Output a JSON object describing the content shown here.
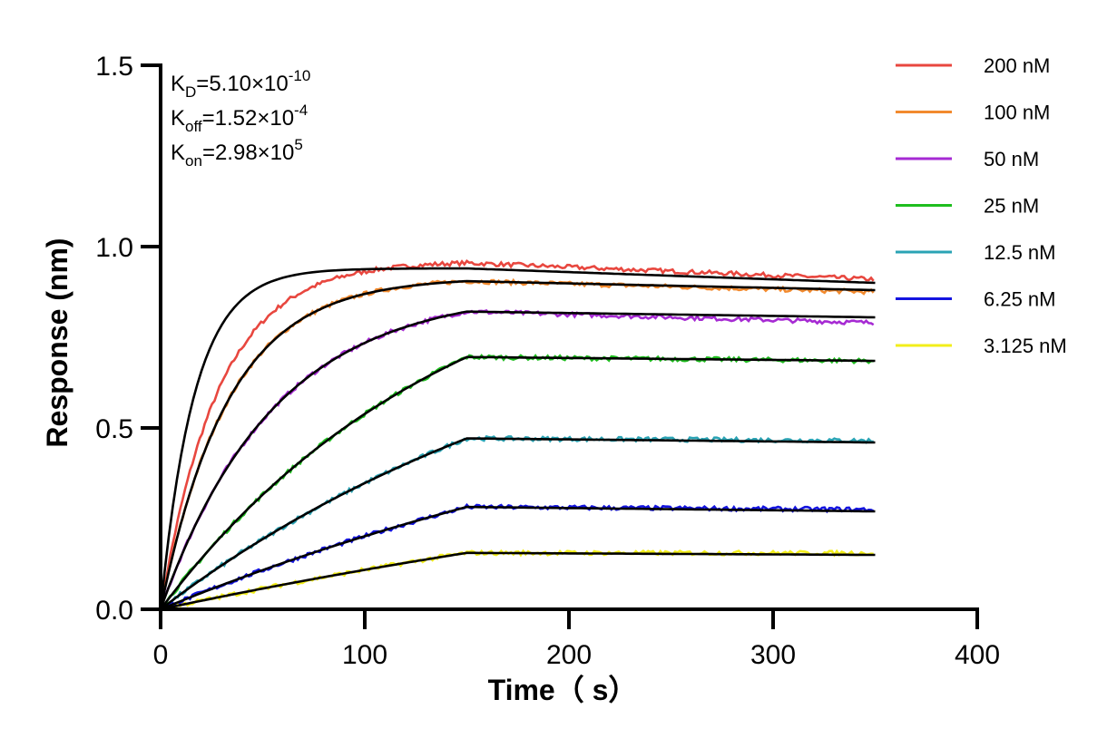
{
  "chart_data": {
    "type": "line",
    "xlabel": "Time（ s）",
    "ylabel": "Response (nm)",
    "xlim": [
      0,
      400
    ],
    "ylim": [
      0.0,
      1.5
    ],
    "x_ticks": [
      "0",
      "100",
      "200",
      "300",
      "400"
    ],
    "y_ticks": [
      "0.0",
      "0.5",
      "1.0",
      "1.5"
    ],
    "x_tick_values": [
      0,
      100,
      200,
      300,
      400
    ],
    "y_tick_values": [
      0.0,
      0.5,
      1.0,
      1.5
    ],
    "grid": false,
    "legend_position": "top-right",
    "association_end": 150,
    "experiment_end": 350,
    "kinetics": [
      {
        "name": "K",
        "sub": "D",
        "eq": "=5.10×10",
        "exp": "-10"
      },
      {
        "name": "K",
        "sub": "off",
        "eq": "=1.52×10",
        "exp": "-4"
      },
      {
        "name": "K",
        "sub": "on",
        "eq": "=2.98×10",
        "exp": "5"
      }
    ],
    "series": [
      {
        "name": "200 nM",
        "color": "#e8473f",
        "fit_rmax": 0.94,
        "fit_kobs": 0.06,
        "data_rmax": 0.96,
        "data_kobs": 0.035,
        "end_value": 0.91,
        "fit_end_value": 0.9
      },
      {
        "name": "100 nM",
        "color": "#f28a2e",
        "fit_rmax": 0.915,
        "fit_kobs": 0.03,
        "data_rmax": 0.915,
        "data_kobs": 0.03,
        "end_value": 0.875,
        "fit_end_value": 0.88
      },
      {
        "name": "50 nM",
        "color": "#a62ad3",
        "fit_rmax": 0.88,
        "fit_kobs": 0.018,
        "data_rmax": 0.88,
        "data_kobs": 0.018,
        "end_value": 0.79,
        "fit_end_value": 0.805
      },
      {
        "name": "25 nM",
        "color": "#1fbe1f",
        "fit_rmax": 1.07,
        "fit_kobs": 0.007,
        "data_rmax": 1.07,
        "data_kobs": 0.007,
        "end_value": 0.685,
        "fit_end_value": 0.685
      },
      {
        "name": "12.5 nM",
        "color": "#2aa3b4",
        "fit_rmax": 0.96,
        "fit_kobs": 0.0045,
        "data_rmax": 0.96,
        "data_kobs": 0.0045,
        "end_value": 0.465,
        "fit_end_value": 0.46
      },
      {
        "name": "6.25 nM",
        "color": "#1414e0",
        "fit_rmax": 0.8,
        "fit_kobs": 0.0029,
        "data_rmax": 0.8,
        "data_kobs": 0.0029,
        "end_value": 0.275,
        "fit_end_value": 0.27
      },
      {
        "name": "3.125 nM",
        "color": "#f2ee1a",
        "fit_rmax": 0.6,
        "fit_kobs": 0.002,
        "data_rmax": 0.6,
        "data_kobs": 0.002,
        "end_value": 0.155,
        "fit_end_value": 0.15
      }
    ]
  }
}
